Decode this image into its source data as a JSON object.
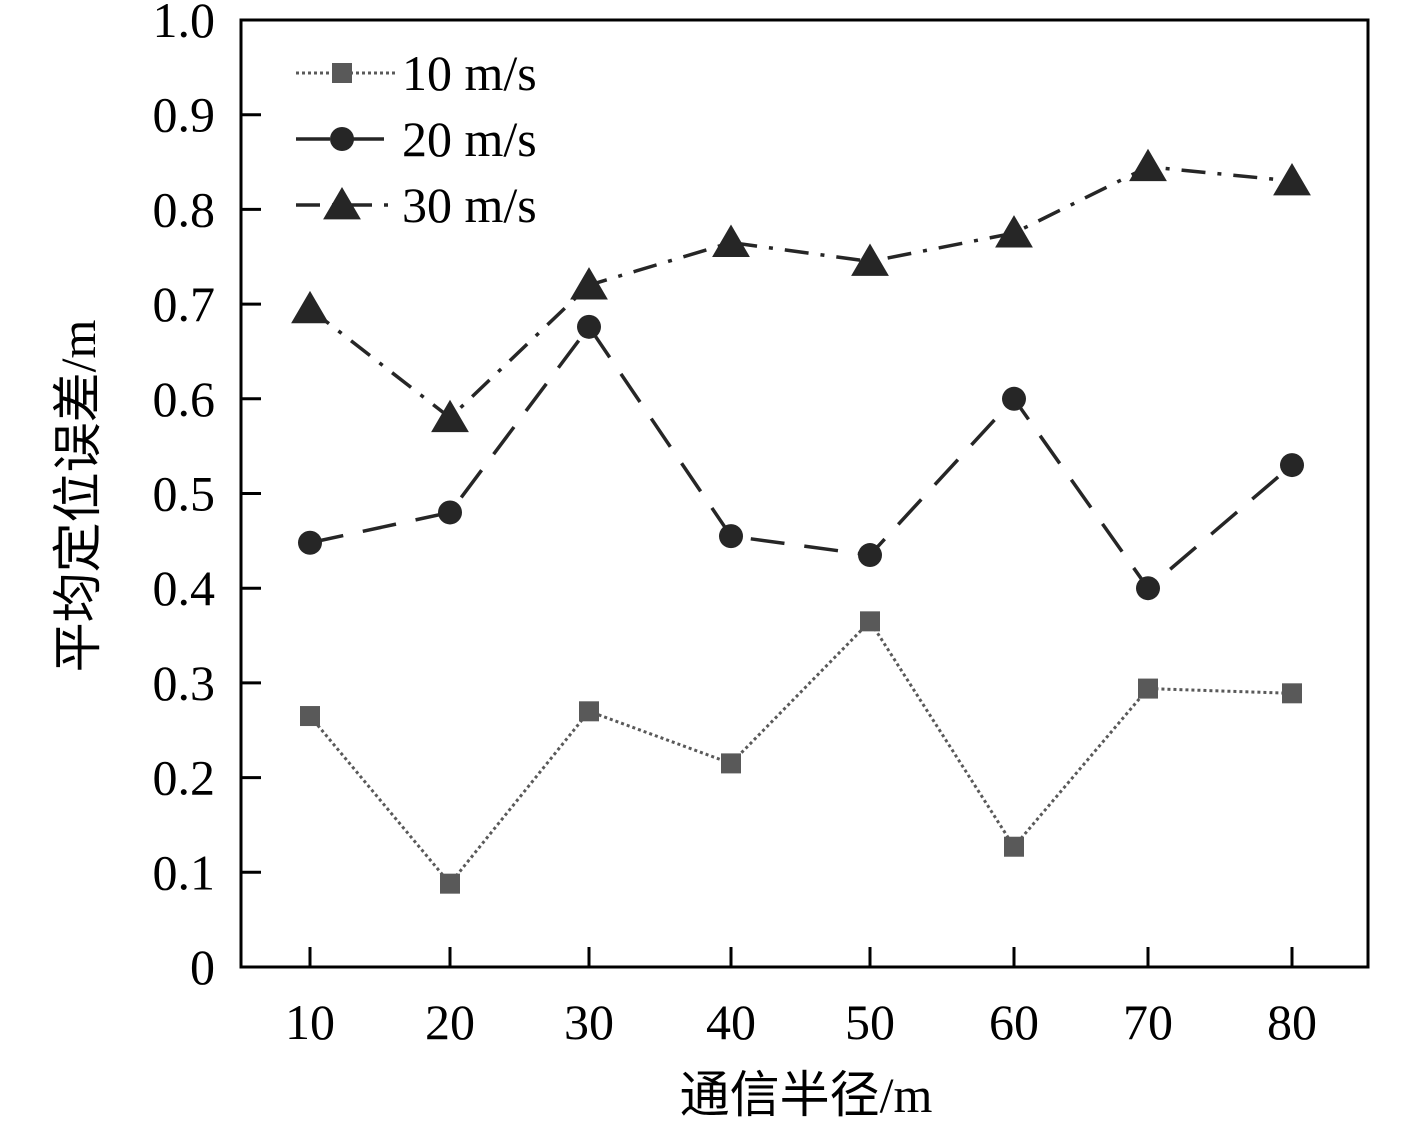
{
  "chart_data": {
    "type": "line",
    "xlabel": "通信半径/m",
    "ylabel": "平均定位误差/m",
    "x": [
      10,
      20,
      30,
      40,
      50,
      60,
      70,
      80
    ],
    "x_tick_labels": [
      "10",
      "20",
      "30",
      "40",
      "50",
      "60",
      "70",
      "80"
    ],
    "y_tick_labels": [
      "0",
      "0.1",
      "0.2",
      "0.3",
      "0.4",
      "0.5",
      "0.6",
      "0.7",
      "0.8",
      "0.9",
      "1.0"
    ],
    "ylim": [
      0,
      1.0
    ],
    "grid": false,
    "legend_position": "top-left",
    "series": [
      {
        "name": "10 m/s",
        "marker": "square",
        "line_style": "dotted",
        "color": "#595959",
        "values": [
          0.265,
          0.088,
          0.27,
          0.215,
          0.365,
          0.127,
          0.294,
          0.289
        ]
      },
      {
        "name": "20 m/s",
        "marker": "circle",
        "line_style": "dashed",
        "color": "#262626",
        "values": [
          0.448,
          0.48,
          0.676,
          0.455,
          0.435,
          0.6,
          0.4,
          0.53
        ]
      },
      {
        "name": "30 m/s",
        "marker": "triangle",
        "line_style": "dash-dot",
        "color": "#262626",
        "values": [
          0.695,
          0.58,
          0.72,
          0.765,
          0.745,
          0.775,
          0.845,
          0.83
        ]
      }
    ]
  }
}
